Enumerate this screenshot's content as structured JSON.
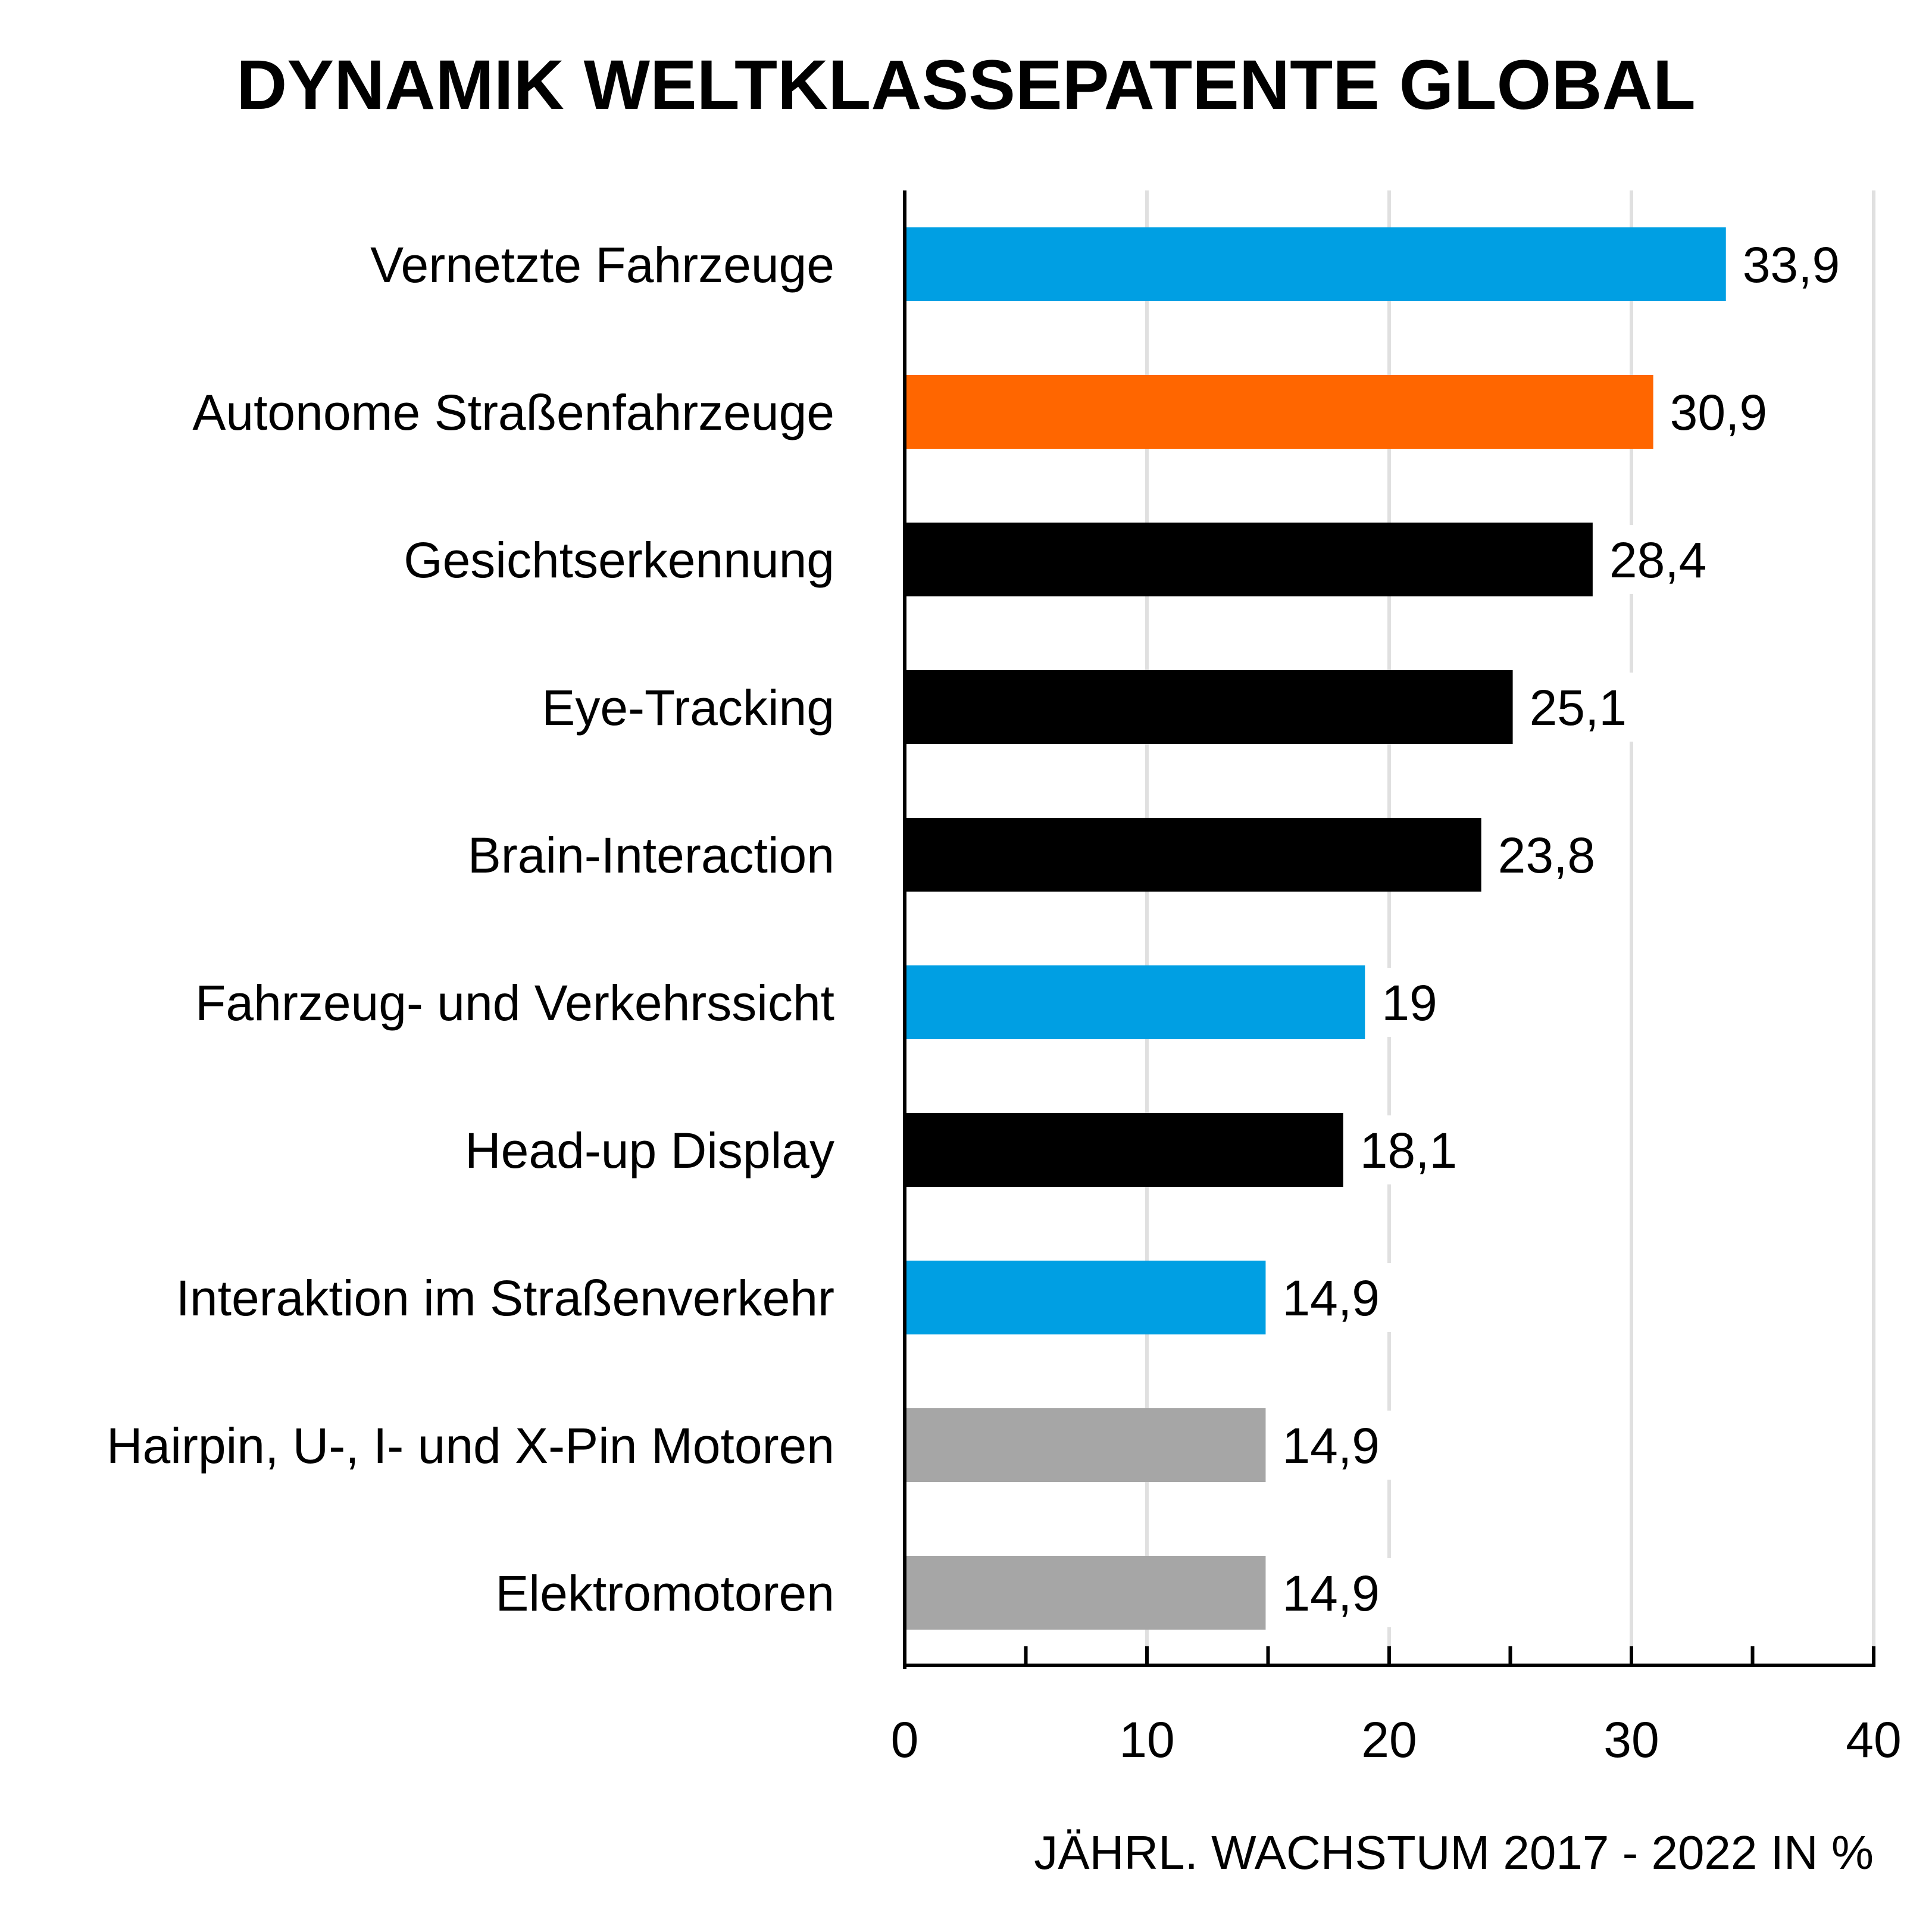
{
  "chart_data": {
    "type": "bar",
    "orientation": "horizontal",
    "title": "DYNAMIK WELTKLASSEPATENTE GLOBAL",
    "xlabel": "JÄHRL. WACHSTUM 2017 - 2022 IN %",
    "ylabel": "",
    "xlim": [
      0,
      40
    ],
    "xticks": [
      "0",
      "10",
      "20",
      "30",
      "40"
    ],
    "grid": "vertical",
    "categories": [
      "Vernetzte Fahrzeuge",
      "Autonome Straßenfahrzeuge",
      "Gesichtserkennung",
      "Eye-Tracking",
      "Brain-Interaction",
      "Fahrzeug- und Verkehrssicht",
      "Head-up Display",
      "Interaktion im Straßenverkehr",
      "Hairpin, U-, I- und X-Pin Motoren",
      "Elektromotoren"
    ],
    "values": [
      33.9,
      30.9,
      28.4,
      25.1,
      23.8,
      19,
      18.1,
      14.9,
      14.9,
      14.9
    ],
    "value_labels": [
      "33,9",
      "30,9",
      "28,4",
      "25,1",
      "23,8",
      "19",
      "18,1",
      "14,9",
      "14,9",
      "14,9"
    ],
    "bar_colors": [
      "#009FE3",
      "#FF6600",
      "#000000",
      "#000000",
      "#000000",
      "#009FE3",
      "#000000",
      "#009FE3",
      "#A6A6A6",
      "#A6A6A6"
    ],
    "gridline_color": "#E0E0E0",
    "axis_color": "#000000"
  }
}
